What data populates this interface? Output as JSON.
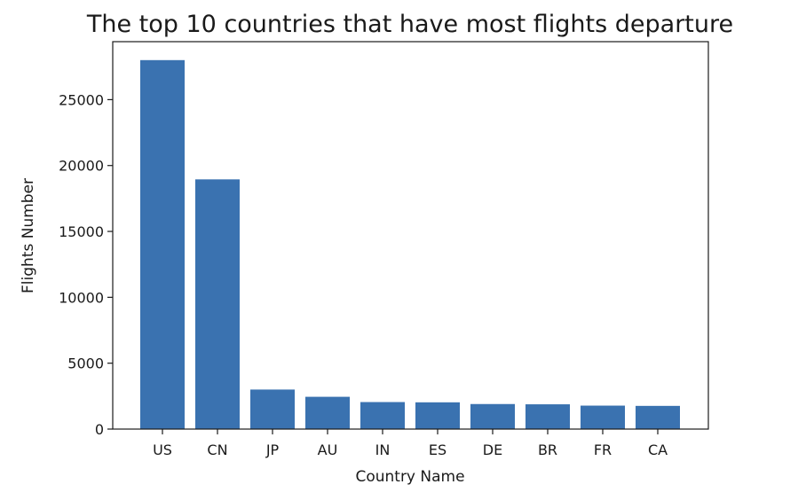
{
  "chart_data": {
    "type": "bar",
    "title": "The top 10 countries that have most flights departure",
    "xlabel": "Country Name",
    "ylabel": "Flights Number",
    "categories": [
      "US",
      "CN",
      "JP",
      "AU",
      "IN",
      "ES",
      "DE",
      "BR",
      "FR",
      "CA"
    ],
    "values": [
      28000,
      18950,
      3000,
      2450,
      2050,
      2030,
      1900,
      1880,
      1780,
      1760
    ],
    "ylim": [
      0,
      29400
    ],
    "yticks": [
      0,
      5000,
      10000,
      15000,
      20000,
      25000
    ],
    "bar_color": "#3a72b0",
    "grid": false,
    "legend": false
  }
}
